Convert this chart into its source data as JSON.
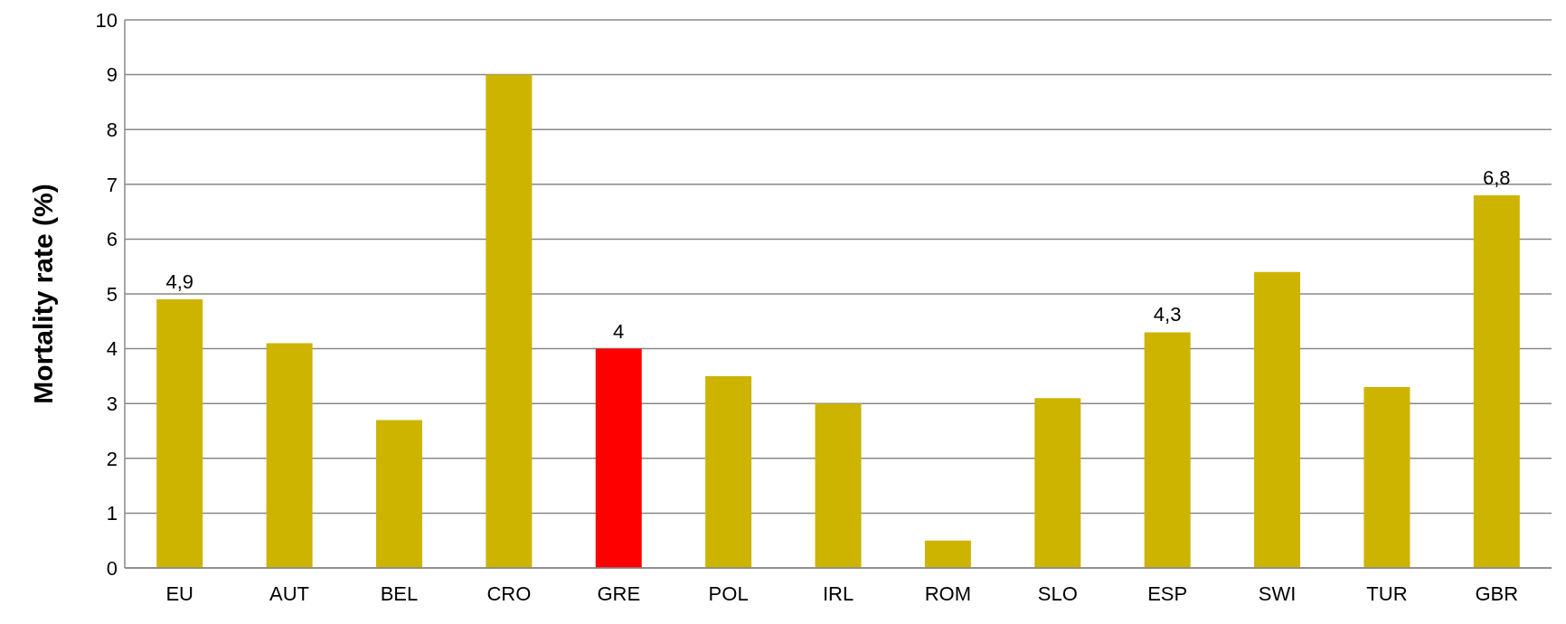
{
  "chart_data": {
    "type": "bar",
    "ylabel": "Mortality rate (%)",
    "categories": [
      "EU",
      "AUT",
      "BEL",
      "CRO",
      "GRE",
      "POL",
      "IRL",
      "ROM",
      "SLO",
      "ESP",
      "SWI",
      "TUR",
      "GBR"
    ],
    "values": [
      4.9,
      4.1,
      2.7,
      9.0,
      4,
      3.5,
      3.0,
      0.5,
      3.1,
      4.3,
      5.4,
      3.3,
      6.8
    ],
    "colors": [
      "#ccb400",
      "#ccb400",
      "#ccb400",
      "#ccb400",
      "#ff0000",
      "#ccb400",
      "#ccb400",
      "#ccb400",
      "#ccb400",
      "#ccb400",
      "#ccb400",
      "#ccb400",
      "#ccb400"
    ],
    "value_labels": [
      "4,9",
      null,
      null,
      null,
      "4",
      null,
      null,
      null,
      null,
      "4,3",
      null,
      null,
      "6,8"
    ],
    "ylim": [
      0,
      10
    ],
    "yticks": [
      0,
      1,
      2,
      3,
      4,
      5,
      6,
      7,
      8,
      9,
      10
    ],
    "grid": "y"
  }
}
